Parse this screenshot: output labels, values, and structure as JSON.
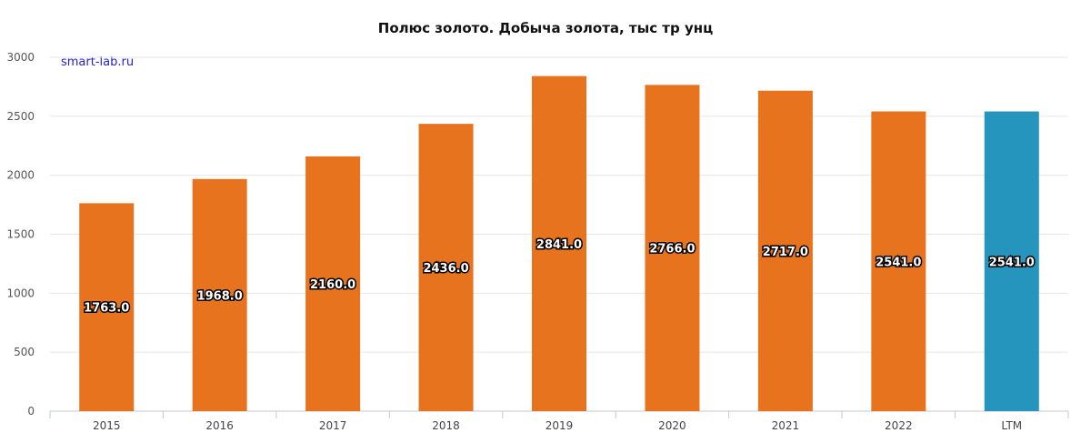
{
  "chart_data": {
    "type": "bar",
    "title": "Полюс золото. Добыча золота, тыс тр унц",
    "watermark": "smart-lab.ru",
    "categories": [
      "2015",
      "2016",
      "2017",
      "2018",
      "2019",
      "2020",
      "2021",
      "2022",
      "LTM"
    ],
    "values": [
      1763.0,
      1968.0,
      2160.0,
      2436.0,
      2841.0,
      2766.0,
      2717.0,
      2541.0,
      2541.0
    ],
    "data_labels": [
      "1763.0",
      "1968.0",
      "2160.0",
      "2436.0",
      "2841.0",
      "2766.0",
      "2717.0",
      "2541.0",
      "2541.0"
    ],
    "bar_colors": [
      "#e8731e",
      "#e8731e",
      "#e8731e",
      "#e8731e",
      "#e8731e",
      "#e8731e",
      "#e8731e",
      "#e8731e",
      "#2595bd"
    ],
    "ylim": [
      0,
      3000
    ],
    "yticks": [
      0,
      500,
      1000,
      1500,
      2000,
      2500,
      3000
    ],
    "grid": true,
    "xlabel": "",
    "ylabel": ""
  }
}
